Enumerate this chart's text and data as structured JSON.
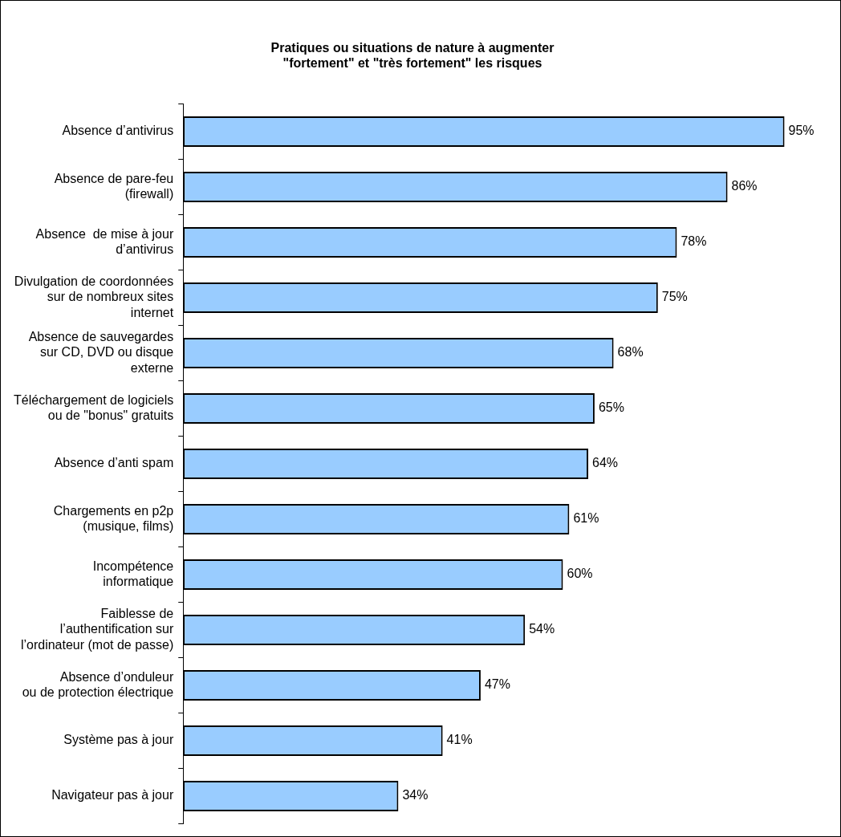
{
  "chart_data": {
    "type": "bar",
    "orientation": "horizontal",
    "title": "Pratiques ou situations de nature à augmenter\n\"fortement\" et \"très fortement\" les risques",
    "categories": [
      "Absence d’antivirus",
      "Absence de pare-feu\n(firewall)",
      "Absence  de mise à jour\nd’antivirus",
      "Divulgation de coordonnées\nsur de nombreux sites\ninternet",
      "Absence de sauvegardes\nsur CD, DVD ou disque\nexterne",
      "Téléchargement de logiciels\nou de \"bonus\" gratuits",
      "Absence d’anti spam",
      "Chargements en p2p\n(musique, films)",
      "Incompétence\ninformatique",
      "Faiblesse de\nl’authentification sur\nl’ordinateur (mot de passe)",
      "Absence d’onduleur\nou de protection électrique",
      "Système pas à jour",
      "Navigateur pas à jour"
    ],
    "values": [
      95,
      86,
      78,
      75,
      68,
      65,
      64,
      61,
      60,
      54,
      47,
      41,
      34
    ],
    "value_labels": [
      "95%",
      "86%",
      "78%",
      "75%",
      "68%",
      "65%",
      "64%",
      "61%",
      "60%",
      "54%",
      "47%",
      "41%",
      "34%"
    ],
    "color": "#99ccff",
    "tick_labels": "y",
    "grid": false,
    "legend": false
  }
}
